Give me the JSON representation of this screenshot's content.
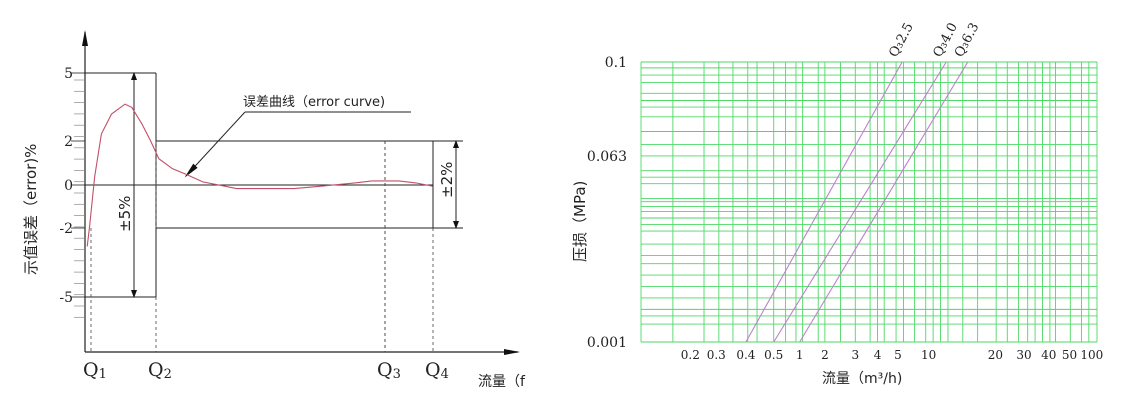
{
  "chart_data": [
    {
      "type": "line",
      "ylabel": "示值误差（error)%",
      "xlabel": "流量（f",
      "y_ticks": [
        "5",
        "2",
        "0",
        "-2",
        "-5"
      ],
      "x_ticks": [
        {
          "main": "Q",
          "sub": "1"
        },
        {
          "main": "Q",
          "sub": "2"
        },
        {
          "main": "Q",
          "sub": "3"
        },
        {
          "main": "Q",
          "sub": "4"
        }
      ],
      "annotation": "误差曲线（error curve)",
      "limit_low_flow": "±5%",
      "limit_high_flow": "±2%",
      "limits": {
        "Q1_Q2": [
          -5,
          5
        ],
        "Q2_Q4": [
          -2,
          2
        ]
      },
      "colors": {
        "curve": "#c0506a",
        "lines": "#222222"
      }
    },
    {
      "type": "line",
      "ylabel": "压损（MPa)",
      "xlabel": "流量（m³/h)",
      "scale": "log-log",
      "grid": true,
      "y_ticks": [
        "0.1",
        "0.063",
        "0.001"
      ],
      "x_ticks": [
        "0.2",
        "0.3",
        "0.4",
        "0.5",
        "1",
        "2",
        "3",
        "4",
        "5",
        "10",
        "20",
        "30",
        "40",
        "50",
        "100"
      ],
      "series": [
        {
          "name": "Q₃2.5",
          "x": [
            0.4,
            5.5
          ],
          "y": [
            0.001,
            0.1
          ]
        },
        {
          "name": "Q₃4.0",
          "x": [
            0.5,
            12
          ],
          "y": [
            0.001,
            0.1
          ]
        },
        {
          "name": "Q₃6.3",
          "x": [
            1,
            15
          ],
          "y": [
            0.001,
            0.1
          ]
        }
      ],
      "colors": {
        "grid": "#4cd964",
        "series": "#c080d0"
      }
    }
  ]
}
